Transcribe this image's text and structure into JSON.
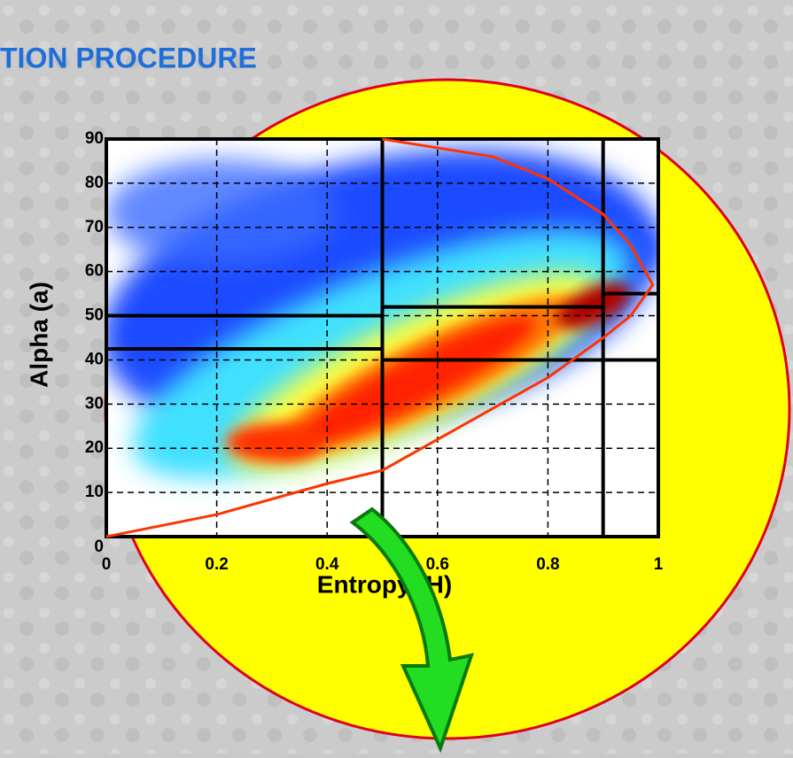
{
  "title": "TION PROCEDURE",
  "chart_data": {
    "type": "density",
    "xlabel": "Entropy (H)",
    "ylabel": "Alpha (a)",
    "xlim": [
      0,
      1
    ],
    "xticks": [
      0,
      0.2,
      0.4,
      0.6,
      0.8,
      1
    ],
    "ylim": [
      0,
      90
    ],
    "yticks": [
      0,
      10,
      20,
      30,
      40,
      50,
      60,
      70,
      80,
      90
    ],
    "grid": true,
    "zone_h_bounds": [
      0.5,
      0.9
    ],
    "zone_alpha_bounds": [
      [
        42.5,
        50
      ],
      [
        40,
        52
      ],
      [
        40,
        55
      ]
    ],
    "boundary": {
      "color": "#ff3300",
      "x": [
        0,
        0.2,
        0.4,
        0.5,
        0.6,
        0.7,
        0.8,
        0.9,
        0.95,
        0.99,
        0.95,
        0.9,
        0.8,
        0.7,
        0.5
      ],
      "y": [
        0,
        5,
        12,
        15,
        22,
        29,
        36,
        45,
        50,
        57,
        66,
        73,
        81,
        86,
        90
      ]
    }
  }
}
